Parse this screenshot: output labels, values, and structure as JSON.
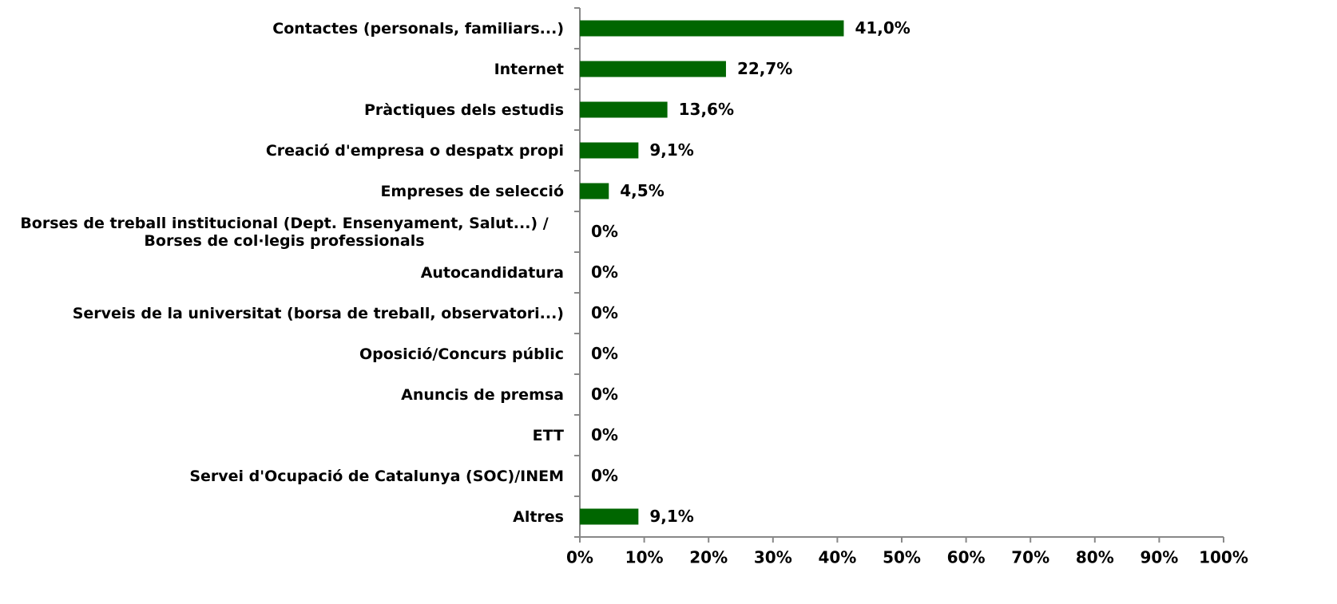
{
  "chart_data": {
    "type": "bar",
    "orientation": "horizontal",
    "categories": [
      "Contactes (personals, familiars...)",
      "Internet",
      "Pràctiques dels estudis",
      "Creació d'empresa o despatx propi",
      "Empreses de selecció",
      "Borses de treball institucional (Dept. Ensenyament, Salut...) / Borses de col·legis professionals",
      "Autocandidatura",
      "Serveis de la universitat (borsa de treball, observatori...)",
      "Oposició/Concurs públic",
      "Anuncis de premsa",
      "ETT",
      "Servei d'Ocupació de Catalunya (SOC)/INEM",
      "Altres"
    ],
    "values": [
      41.0,
      22.7,
      13.6,
      9.1,
      4.5,
      0,
      0,
      0,
      0,
      0,
      0,
      0,
      9.1
    ],
    "value_labels": [
      "41,0%",
      "22,7%",
      "13,6%",
      "9,1%",
      "4,5%",
      "0%",
      "0%",
      "0%",
      "0%",
      "0%",
      "0%",
      "0%",
      "9,1%"
    ],
    "color": "#006600",
    "xlim": [
      0,
      100
    ],
    "xticks": [
      {
        "value": 0,
        "label": "0%"
      },
      {
        "value": 10,
        "label": "10%"
      },
      {
        "value": 20,
        "label": "20%"
      },
      {
        "value": 30,
        "label": "30%"
      },
      {
        "value": 40,
        "label": "40%"
      },
      {
        "value": 50,
        "label": "50%"
      },
      {
        "value": 60,
        "label": "60%"
      },
      {
        "value": 70,
        "label": "70%"
      },
      {
        "value": 80,
        "label": "80%"
      },
      {
        "value": 90,
        "label": "90%"
      },
      {
        "value": 100,
        "label": "100%"
      }
    ]
  }
}
